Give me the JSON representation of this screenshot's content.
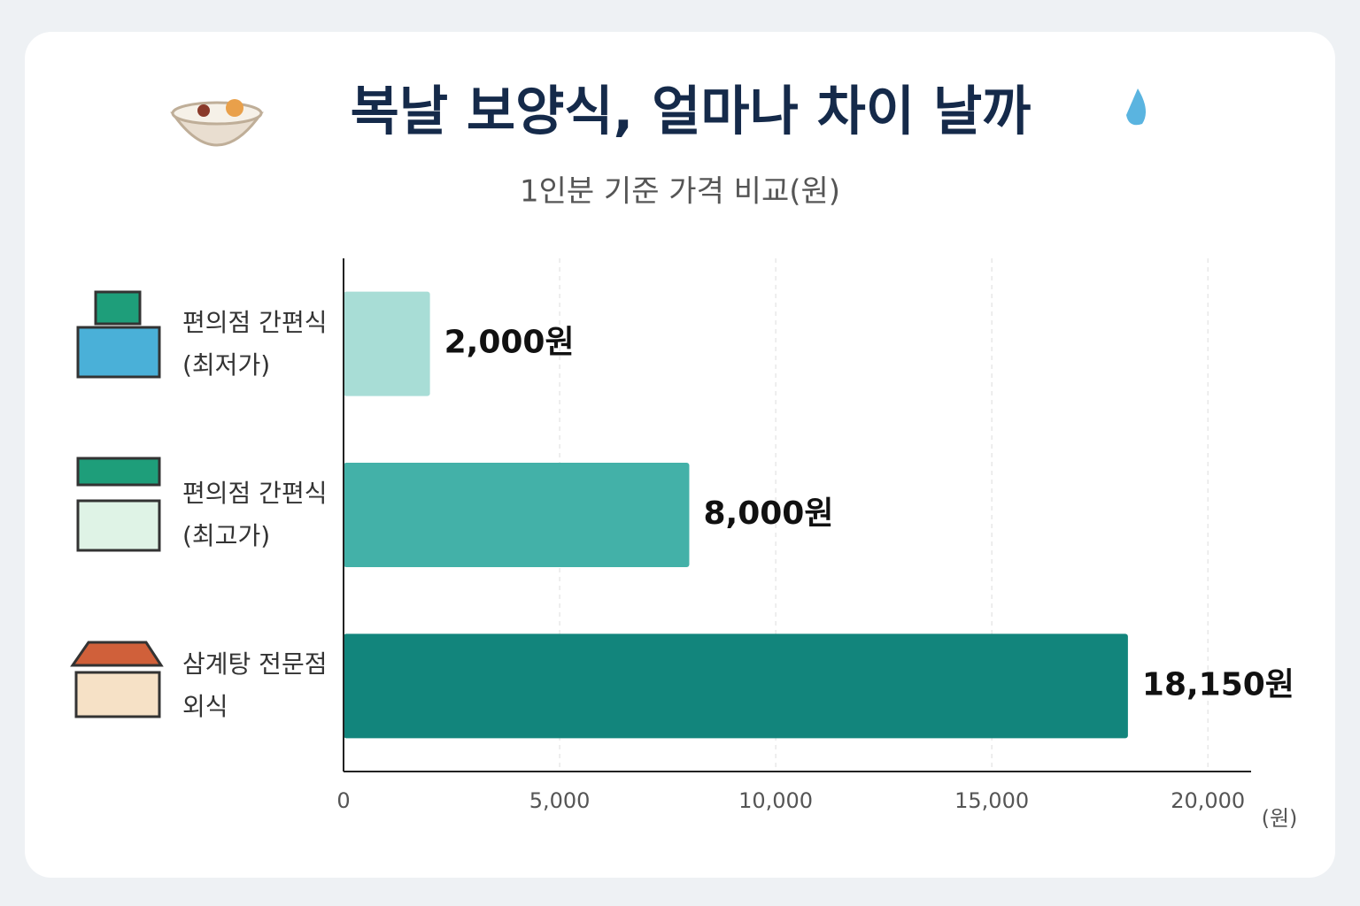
{
  "chart_data": {
    "type": "barh",
    "title": "복날 보양식, 얼마나 차이 날까",
    "subtitle": "1인분 기준 가격 비교(원)",
    "categories": [
      "편의점 간편식\n(최저가)",
      "편의점 간편식\n(최고가)",
      "삼계탕 전문점\n외식"
    ],
    "values": [
      2000,
      8000,
      18150
    ],
    "value_labels": [
      "2,000원",
      "8,000원",
      "18,150원"
    ],
    "colors": [
      "#a8ddd6",
      "#43b1a8",
      "#12857c"
    ],
    "xlim": [
      0,
      21000
    ],
    "xticks": [
      0,
      {
        "value": 5000,
        "label": "5,000"
      },
      {
        "value": 10000,
        "label": "10,000"
      },
      {
        "value": 15000,
        "label": "15,000"
      },
      {
        "value": 20000,
        "label": "20,000"
      }
    ],
    "x_unit": "(원)",
    "grid": true
  }
}
